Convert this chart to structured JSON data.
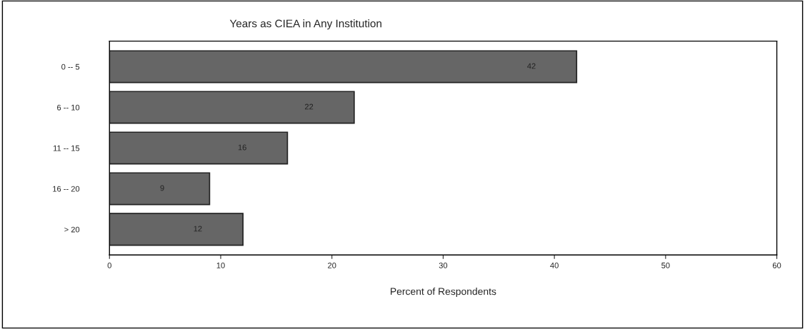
{
  "chart_data": {
    "type": "bar",
    "orientation": "horizontal",
    "title": "Years as CIEA in Any Institution",
    "xlabel": "Percent of Respondents",
    "categories": [
      "0 -- 5",
      "6 -- 10",
      "11 -- 15",
      "16 -- 20",
      "> 20"
    ],
    "values": [
      42,
      22,
      16,
      9,
      12
    ],
    "color": "#666666",
    "data_labels": true,
    "xlim": [
      0,
      60
    ],
    "xticks": [
      0,
      10,
      20,
      30,
      40,
      50,
      60
    ],
    "grid": false
  }
}
